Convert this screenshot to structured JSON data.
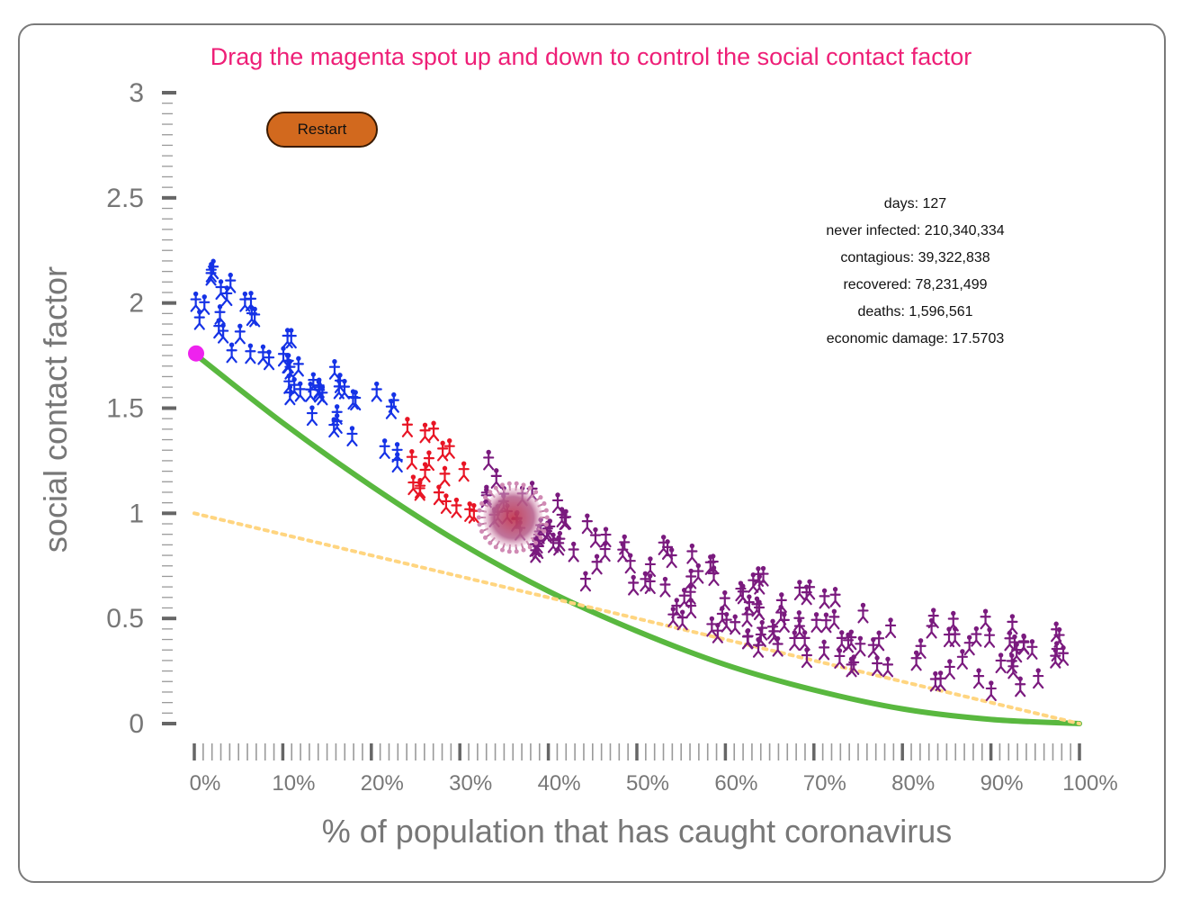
{
  "instruction": "Drag the magenta spot up and down to control the social contact factor",
  "restart_label": "Restart",
  "stats": {
    "days": "days: 127",
    "never_infected": "never infected: 210,340,334",
    "contagious": "contagious: 39,322,838",
    "recovered": "recovered: 78,231,499",
    "deaths": "deaths: 1,596,561",
    "economic_damage": "economic damage: 17.5703"
  },
  "chart_data": {
    "type": "line",
    "xlabel": "% of population that has caught coronavirus",
    "ylabel": "social contact factor",
    "x_ticks": [
      "0%",
      "10%",
      "20%",
      "30%",
      "40%",
      "50%",
      "60%",
      "70%",
      "80%",
      "90%",
      "100%"
    ],
    "y_ticks": [
      "0",
      "0.5",
      "1",
      "1.5",
      "2",
      "2.5",
      "3"
    ],
    "xlim": [
      0,
      100
    ],
    "ylim": [
      0,
      3
    ],
    "series": [
      {
        "color": "#59b83f",
        "style": "solid",
        "x": [
          0,
          10,
          20,
          30,
          40,
          50,
          60,
          70,
          80,
          90,
          100
        ],
        "y": [
          1.76,
          1.43,
          1.13,
          0.86,
          0.63,
          0.44,
          0.28,
          0.16,
          0.07,
          0.02,
          0.0
        ]
      },
      {
        "color": "#ffd580",
        "style": "dotted",
        "x": [
          0,
          100
        ],
        "y": [
          1.0,
          0.0
        ]
      }
    ],
    "control_point": {
      "x": 0,
      "y": 1.76,
      "color": "#ee22ee"
    },
    "virus": {
      "x": 36,
      "y": 0.98,
      "color": "#b8638f"
    },
    "people_groups": [
      {
        "state": "never infected",
        "color": "#1532e6",
        "x_range": [
          0,
          24
        ],
        "count": 55
      },
      {
        "state": "contagious",
        "color": "#e81424",
        "x_range": [
          24,
          33
        ],
        "count": 18
      },
      {
        "state": "recovered",
        "color": "#7a1a7e",
        "x_range": [
          33,
          100
        ],
        "count": 150
      }
    ]
  }
}
